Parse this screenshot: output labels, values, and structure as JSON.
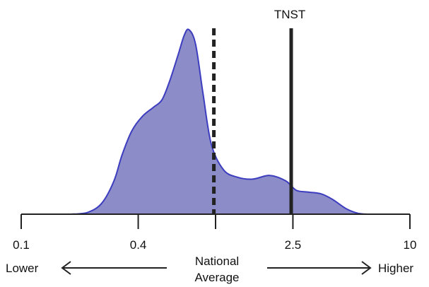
{
  "chart_data": {
    "type": "area",
    "title": "",
    "xlabel": "",
    "ylabel": "",
    "x_scale": "log",
    "xlim": [
      0.1,
      10
    ],
    "ticks": [
      {
        "value": 0.1,
        "label": "0.1"
      },
      {
        "value": 0.4,
        "label": "0.4"
      },
      {
        "value": 1.0,
        "label": ""
      },
      {
        "value": 2.5,
        "label": "2.5"
      },
      {
        "value": 10,
        "label": "10"
      }
    ],
    "series": [
      {
        "color": "#8c8cc8",
        "stroke": "#3d3dc0",
        "points": [
          [
            0.18,
            0.0
          ],
          [
            0.22,
            0.01
          ],
          [
            0.26,
            0.06
          ],
          [
            0.3,
            0.18
          ],
          [
            0.33,
            0.32
          ],
          [
            0.37,
            0.45
          ],
          [
            0.42,
            0.53
          ],
          [
            0.48,
            0.58
          ],
          [
            0.53,
            0.62
          ],
          [
            0.58,
            0.72
          ],
          [
            0.64,
            0.86
          ],
          [
            0.69,
            0.97
          ],
          [
            0.73,
            1.0
          ],
          [
            0.79,
            0.92
          ],
          [
            0.86,
            0.66
          ],
          [
            0.95,
            0.38
          ],
          [
            1.1,
            0.24
          ],
          [
            1.3,
            0.2
          ],
          [
            1.55,
            0.19
          ],
          [
            1.9,
            0.21
          ],
          [
            2.3,
            0.18
          ],
          [
            2.6,
            0.13
          ],
          [
            3.0,
            0.12
          ],
          [
            3.5,
            0.11
          ],
          [
            4.0,
            0.08
          ],
          [
            4.7,
            0.03
          ],
          [
            5.4,
            0.005
          ],
          [
            6.0,
            0.0
          ]
        ]
      }
    ],
    "reference_lines": [
      {
        "name": "National Average",
        "value": 0.98,
        "style": "dashed"
      },
      {
        "name": "TNST",
        "value": 2.45,
        "style": "solid"
      }
    ],
    "annotations": {
      "top_label": "TNST",
      "lower": "Lower",
      "higher": "Higher",
      "average_line1": "National",
      "average_line2": "Average"
    },
    "grid": false,
    "legend": "none"
  }
}
